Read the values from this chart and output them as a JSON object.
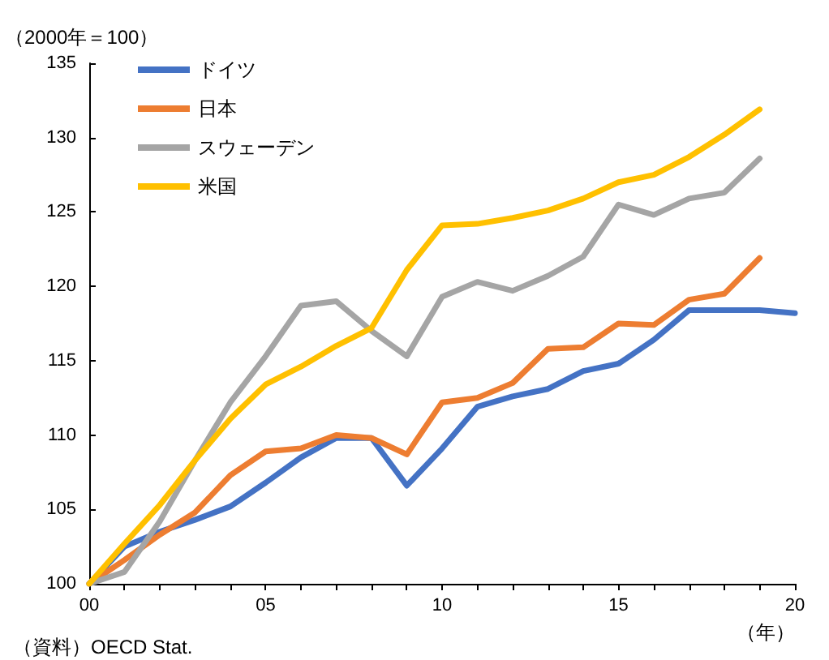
{
  "chart_data": {
    "type": "line",
    "ylabel": "（2000年＝100）",
    "xlabel": "（年）",
    "annotations": [
      "（資料）OECD Stat."
    ],
    "xlim": [
      0,
      20
    ],
    "xticks": [
      {
        "value": 0,
        "label": "00"
      },
      {
        "value": 1,
        "label": null
      },
      {
        "value": 2,
        "label": null
      },
      {
        "value": 3,
        "label": null
      },
      {
        "value": 4,
        "label": null
      },
      {
        "value": 5,
        "label": "05"
      },
      {
        "value": 6,
        "label": null
      },
      {
        "value": 7,
        "label": null
      },
      {
        "value": 8,
        "label": null
      },
      {
        "value": 9,
        "label": null
      },
      {
        "value": 10,
        "label": "10"
      },
      {
        "value": 11,
        "label": null
      },
      {
        "value": 12,
        "label": null
      },
      {
        "value": 13,
        "label": null
      },
      {
        "value": 14,
        "label": null
      },
      {
        "value": 15,
        "label": "15"
      },
      {
        "value": 16,
        "label": null
      },
      {
        "value": 17,
        "label": null
      },
      {
        "value": 18,
        "label": null
      },
      {
        "value": 19,
        "label": null
      },
      {
        "value": 20,
        "label": "20"
      }
    ],
    "ylim": [
      100,
      135
    ],
    "yticks": [
      100,
      105,
      110,
      115,
      120,
      125,
      130,
      135
    ],
    "grid": false,
    "legend": "top left",
    "marker": "none",
    "line_style": "solid",
    "x": [
      0,
      1,
      2,
      3,
      4,
      5,
      6,
      7,
      8,
      9,
      10,
      11,
      12,
      13,
      14,
      15,
      16,
      17,
      18,
      19,
      20
    ],
    "series": [
      {
        "name": "ドイツ",
        "color": "#4472c4",
        "values": [
          100,
          102.5,
          103.5,
          104.3,
          105.2,
          106.8,
          108.5,
          109.8,
          109.8,
          106.6,
          109.1,
          111.9,
          112.6,
          113.1,
          114.3,
          114.8,
          116.4,
          118.4,
          118.4,
          118.4,
          118.2
        ]
      },
      {
        "name": "日本",
        "color": "#ed7d31",
        "values": [
          100,
          101.6,
          103.3,
          104.8,
          107.3,
          108.9,
          109.1,
          110,
          109.8,
          108.7,
          112.2,
          112.5,
          113.5,
          115.8,
          115.9,
          117.5,
          117.4,
          119.1,
          119.5,
          121.9,
          null
        ]
      },
      {
        "name": "スウェーデン",
        "color": "#a5a5a5",
        "values": [
          100,
          100.8,
          104.2,
          108.3,
          112.2,
          115.3,
          118.7,
          119.0,
          117.0,
          115.3,
          119.3,
          120.3,
          119.7,
          120.7,
          122.0,
          125.5,
          124.8,
          125.9,
          126.3,
          128.6,
          null
        ]
      },
      {
        "name": "米国",
        "color": "#ffc000",
        "values": [
          100,
          102.7,
          105.3,
          108.3,
          111.1,
          113.4,
          114.6,
          116.0,
          117.2,
          121.1,
          124.1,
          124.2,
          124.6,
          125.1,
          125.9,
          127.0,
          127.5,
          128.7,
          130.2,
          131.9,
          null
        ]
      }
    ]
  }
}
